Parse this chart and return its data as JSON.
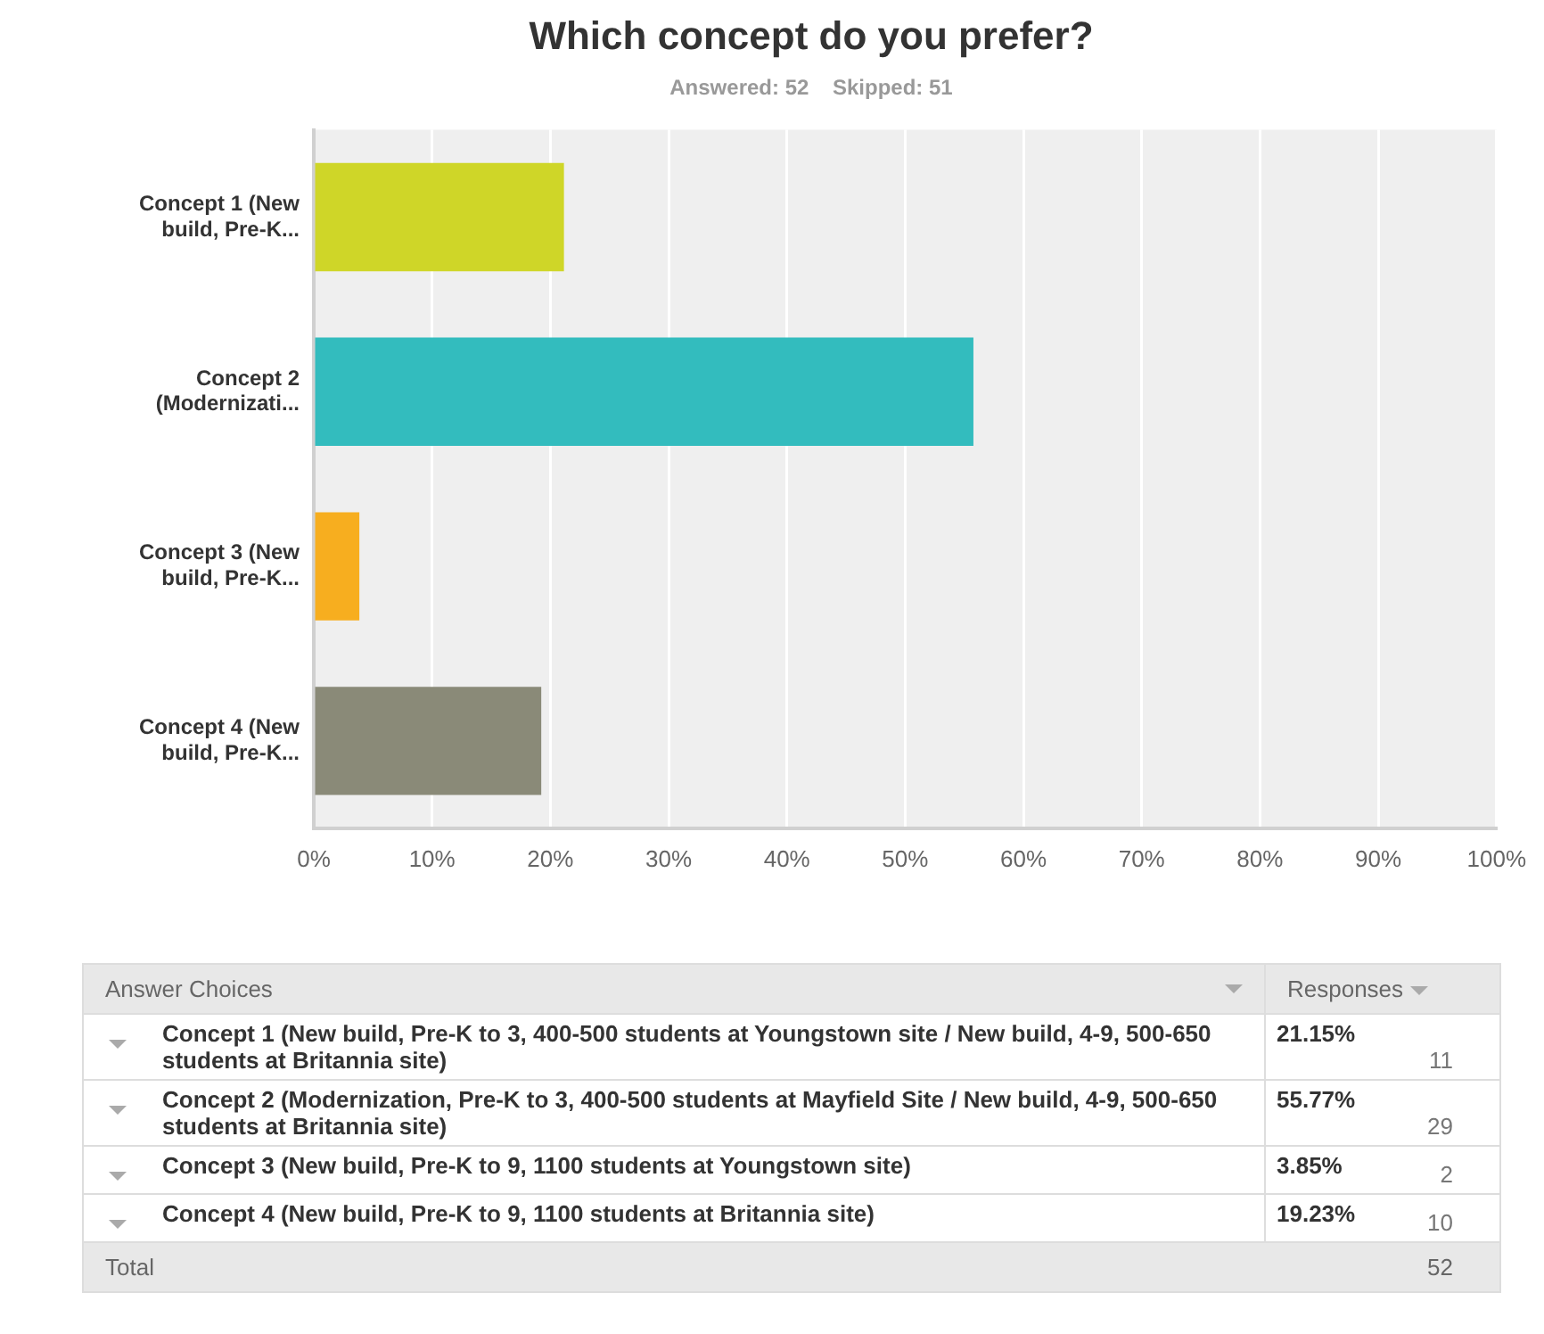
{
  "chart_data": {
    "type": "bar",
    "orientation": "horizontal",
    "title": "Which concept do you prefer?",
    "subtitle": "Answered: 52    Skipped: 51",
    "categories": [
      "Concept 1 (New build, Pre-K...",
      "Concept 2 (Modernizati...",
      "Concept 3 (New build, Pre-K...",
      "Concept 4 (New build, Pre-K..."
    ],
    "values": [
      21.15,
      55.77,
      3.85,
      19.23
    ],
    "colors": [
      "#cfd628",
      "#33bcbe",
      "#f7ae1f",
      "#8a8a78"
    ],
    "xlim": [
      0,
      100
    ],
    "xticks": [
      {
        "value": 0,
        "label": "0%"
      },
      {
        "value": 10,
        "label": "10%"
      },
      {
        "value": 20,
        "label": "20%"
      },
      {
        "value": 30,
        "label": "30%"
      },
      {
        "value": 40,
        "label": "40%"
      },
      {
        "value": 50,
        "label": "50%"
      },
      {
        "value": 60,
        "label": "60%"
      },
      {
        "value": 70,
        "label": "70%"
      },
      {
        "value": 80,
        "label": "80%"
      },
      {
        "value": 90,
        "label": "90%"
      },
      {
        "value": 100,
        "label": "100%"
      }
    ],
    "grid": "x",
    "legend": false,
    "annotations": [
      "Answer Choices",
      "Responses",
      "Concept 1 (New build, Pre-K to 3, 400-500 students at Youngstown site / New build, 4-9, 500-650 students at Britannia site)",
      "Concept 2 (Modernization, Pre-K to 3, 400-500 students at Mayfield Site / New build, 4-9, 500-650 students at Britannia site)",
      "Concept 3 (New build, Pre-K to 9, 1100 students at Youngstown site)",
      "Concept 4 (New build, Pre-K to 9, 1100 students at Britannia site)",
      "11",
      "29",
      "2",
      "10",
      "Total",
      "52",
      "21.15%",
      "55.77%",
      "3.85%",
      "19.23%"
    ]
  }
}
